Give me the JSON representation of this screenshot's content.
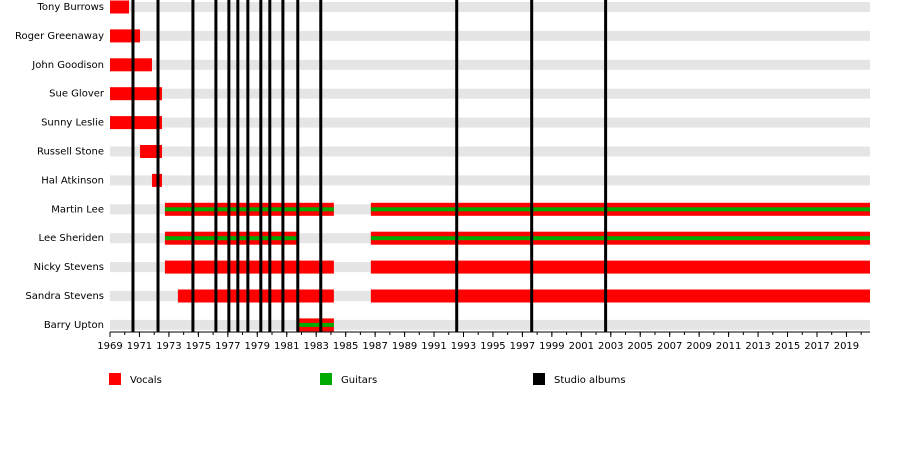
{
  "chart_data": {
    "type": "timeline",
    "xlim": [
      1969,
      2020.6
    ],
    "xticks": [
      1969,
      1971,
      1973,
      1975,
      1977,
      1979,
      1981,
      1983,
      1985,
      1987,
      1989,
      1991,
      1993,
      1995,
      1997,
      1999,
      2001,
      2003,
      2005,
      2007,
      2009,
      2011,
      2013,
      2015,
      2017,
      2019
    ],
    "roles": [
      {
        "name": "Vocals",
        "color": "#ff0000"
      },
      {
        "name": "Guitars",
        "color": "#00aa00"
      }
    ],
    "studio_albums": {
      "name": "Studio albums",
      "color": "#000000",
      "x": [
        1970.56,
        1972.26,
        1974.63,
        1976.19,
        1977.07,
        1977.68,
        1978.36,
        1979.24,
        1979.85,
        1980.74,
        1981.75,
        1983.31,
        1992.54,
        1997.63,
        2002.65
      ]
    },
    "members": [
      {
        "name": "Tony Burrows",
        "periods": [
          {
            "start": 1969,
            "end": 1970.29,
            "roles": [
              "Vocals"
            ]
          }
        ]
      },
      {
        "name": "Roger Greenaway",
        "periods": [
          {
            "start": 1969,
            "end": 1971.04,
            "roles": [
              "Vocals"
            ]
          }
        ]
      },
      {
        "name": "John Goodison",
        "periods": [
          {
            "start": 1969,
            "end": 1971.85,
            "roles": [
              "Vocals"
            ]
          }
        ]
      },
      {
        "name": "Sue Glover",
        "periods": [
          {
            "start": 1969,
            "end": 1972.53,
            "roles": [
              "Vocals"
            ]
          }
        ]
      },
      {
        "name": "Sunny Leslie",
        "periods": [
          {
            "start": 1969,
            "end": 1972.53,
            "roles": [
              "Vocals"
            ]
          }
        ]
      },
      {
        "name": "Russell Stone",
        "periods": [
          {
            "start": 1971.04,
            "end": 1972.53,
            "roles": [
              "Vocals"
            ]
          }
        ]
      },
      {
        "name": "Hal Atkinson",
        "periods": [
          {
            "start": 1971.85,
            "end": 1972.53,
            "roles": [
              "Vocals"
            ]
          }
        ]
      },
      {
        "name": "Martin Lee",
        "periods": [
          {
            "start": 1972.73,
            "end": 1984.2,
            "roles": [
              "Vocals",
              "Guitars"
            ]
          },
          {
            "start": 1986.71,
            "end": 2020.6,
            "roles": [
              "Vocals",
              "Guitars"
            ]
          }
        ]
      },
      {
        "name": "Lee Sheriden",
        "periods": [
          {
            "start": 1972.73,
            "end": 1981.82,
            "roles": [
              "Vocals",
              "Guitars"
            ]
          },
          {
            "start": 1986.71,
            "end": 2020.6,
            "roles": [
              "Vocals",
              "Guitars"
            ]
          }
        ]
      },
      {
        "name": "Nicky Stevens",
        "periods": [
          {
            "start": 1972.73,
            "end": 1984.2,
            "roles": [
              "Vocals"
            ]
          },
          {
            "start": 1986.71,
            "end": 2020.6,
            "roles": [
              "Vocals"
            ]
          }
        ]
      },
      {
        "name": "Sandra Stevens",
        "periods": [
          {
            "start": 1973.61,
            "end": 1984.2,
            "roles": [
              "Vocals"
            ]
          },
          {
            "start": 1986.71,
            "end": 2020.6,
            "roles": [
              "Vocals"
            ]
          }
        ]
      },
      {
        "name": "Barry Upton",
        "periods": [
          {
            "start": 1981.82,
            "end": 1984.2,
            "roles": [
              "Vocals",
              "Guitars"
            ]
          }
        ]
      }
    ]
  }
}
